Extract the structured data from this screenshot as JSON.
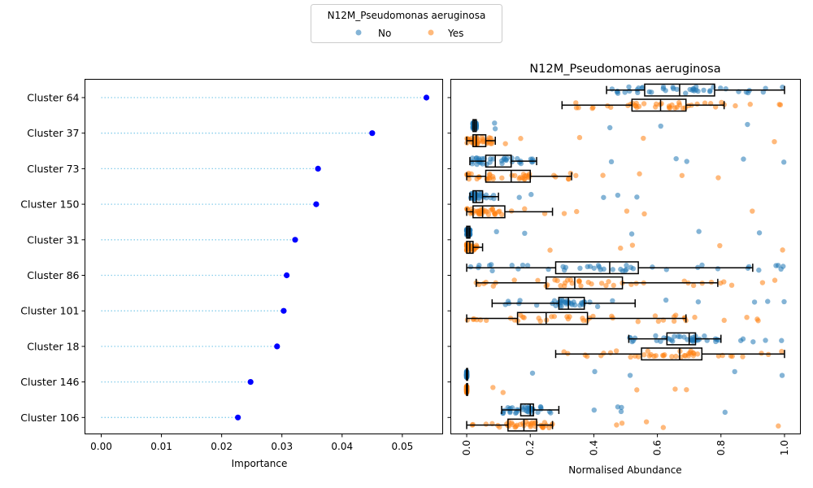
{
  "legend": {
    "title": "N12M_Pseudomonas aeruginosa",
    "entries": [
      {
        "label": "No",
        "color": "#1f77b4"
      },
      {
        "label": "Yes",
        "color": "#ff7f0e"
      }
    ],
    "placement": "top-center"
  },
  "chart_data": [
    {
      "type": "lollipop",
      "title": "",
      "xlabel": "Importance",
      "ylabel": "",
      "xlim": [
        -0.0027,
        0.0567
      ],
      "xticks": [
        0.0,
        0.01,
        0.02,
        0.03,
        0.04,
        0.05
      ],
      "xtick_labels": [
        "0.00",
        "0.01",
        "0.02",
        "0.03",
        "0.04",
        "0.05"
      ],
      "categories": [
        "Cluster 64",
        "Cluster 37",
        "Cluster 73",
        "Cluster 150",
        "Cluster 31",
        "Cluster 86",
        "Cluster 101",
        "Cluster 18",
        "Cluster 146",
        "Cluster 106"
      ],
      "values": [
        0.054,
        0.045,
        0.036,
        0.0357,
        0.0322,
        0.0308,
        0.0303,
        0.0292,
        0.0248,
        0.0227
      ],
      "marker_color": "#0000ff",
      "line_color": "#87ceeb",
      "grid": false
    },
    {
      "type": "box_strip",
      "title": "N12M_Pseudomonas aeruginosa",
      "xlabel": "Normalised Abundance",
      "ylabel": "",
      "xlim": [
        -0.05,
        1.05
      ],
      "xticks": [
        0.0,
        0.2,
        0.4,
        0.6,
        0.8,
        1.0
      ],
      "xtick_labels": [
        "0.0",
        "0.2",
        "0.4",
        "0.6",
        "0.8",
        "1.0"
      ],
      "categories": [
        "Cluster 64",
        "Cluster 37",
        "Cluster 73",
        "Cluster 150",
        "Cluster 31",
        "Cluster 86",
        "Cluster 101",
        "Cluster 18",
        "Cluster 146",
        "Cluster 106"
      ],
      "series": [
        {
          "name": "No",
          "color": "#1f77b4",
          "boxes": [
            {
              "min": 0.44,
              "q1": 0.56,
              "median": 0.67,
              "q3": 0.78,
              "max": 1.0
            },
            {
              "min": 0.02,
              "q1": 0.02,
              "median": 0.025,
              "q3": 0.03,
              "max": 0.03
            },
            {
              "min": 0.01,
              "q1": 0.06,
              "median": 0.09,
              "q3": 0.14,
              "max": 0.22
            },
            {
              "min": 0.01,
              "q1": 0.02,
              "median": 0.03,
              "q3": 0.05,
              "max": 0.1
            },
            {
              "min": 0.0,
              "q1": 0.0,
              "median": 0.005,
              "q3": 0.01,
              "max": 0.01
            },
            {
              "min": 0.0,
              "q1": 0.28,
              "median": 0.45,
              "q3": 0.54,
              "max": 0.9
            },
            {
              "min": 0.08,
              "q1": 0.29,
              "median": 0.32,
              "q3": 0.37,
              "max": 0.53
            },
            {
              "min": 0.51,
              "q1": 0.63,
              "median": 0.7,
              "q3": 0.72,
              "max": 0.8
            },
            {
              "min": 0.0,
              "q1": 0.0,
              "median": 0.0,
              "q3": 0.0,
              "max": 0.0
            },
            {
              "min": 0.11,
              "q1": 0.17,
              "median": 0.2,
              "q3": 0.21,
              "max": 0.29
            }
          ]
        },
        {
          "name": "Yes",
          "color": "#ff7f0e",
          "boxes": [
            {
              "min": 0.3,
              "q1": 0.52,
              "median": 0.61,
              "q3": 0.69,
              "max": 0.81
            },
            {
              "min": 0.0,
              "q1": 0.02,
              "median": 0.03,
              "q3": 0.06,
              "max": 0.09
            },
            {
              "min": 0.0,
              "q1": 0.06,
              "median": 0.14,
              "q3": 0.2,
              "max": 0.33
            },
            {
              "min": 0.0,
              "q1": 0.02,
              "median": 0.05,
              "q3": 0.12,
              "max": 0.27
            },
            {
              "min": 0.0,
              "q1": 0.0,
              "median": 0.01,
              "q3": 0.02,
              "max": 0.05
            },
            {
              "min": 0.03,
              "q1": 0.25,
              "median": 0.34,
              "q3": 0.49,
              "max": 0.79
            },
            {
              "min": 0.0,
              "q1": 0.16,
              "median": 0.25,
              "q3": 0.38,
              "max": 0.69
            },
            {
              "min": 0.28,
              "q1": 0.55,
              "median": 0.67,
              "q3": 0.74,
              "max": 1.0
            },
            {
              "min": 0.0,
              "q1": 0.0,
              "median": 0.0,
              "q3": 0.0,
              "max": 0.0
            },
            {
              "min": 0.0,
              "q1": 0.13,
              "median": 0.18,
              "q3": 0.22,
              "max": 0.27
            }
          ]
        }
      ]
    }
  ]
}
